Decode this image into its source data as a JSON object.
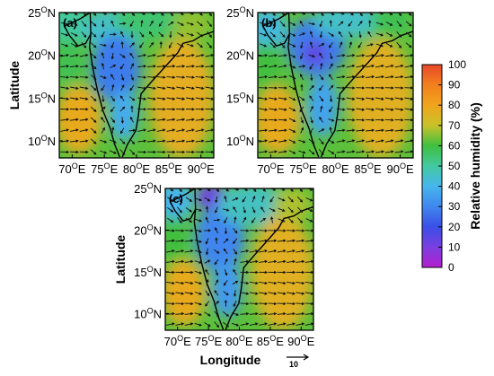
{
  "chart_data": {
    "type": "heatmap",
    "title": "",
    "variable": "Relative humidity (%)",
    "colorbar": {
      "label": "Relative humidity (%)",
      "ticks": [
        "0",
        "10",
        "20",
        "30",
        "40",
        "50",
        "60",
        "70",
        "80",
        "90",
        "100"
      ],
      "colors": [
        "#b41fd0",
        "#7a3fe0",
        "#3a4fe6",
        "#3f86ee",
        "#46b6ee",
        "#43c9a0",
        "#3fbf3f",
        "#c9c22a",
        "#f0a41c",
        "#f2801e",
        "#e8482a"
      ]
    },
    "x_ticks": [
      "70",
      "75",
      "80",
      "85",
      "90"
    ],
    "x_tick_suffix": "E",
    "y_ticks": [
      "10",
      "15",
      "20",
      "25"
    ],
    "y_tick_suffix": "N",
    "degree_symbol": "O",
    "xlim": [
      68,
      92
    ],
    "ylim": [
      8,
      25
    ],
    "xlabel": "Longitude",
    "ylabel": "Latitude",
    "wind_reference": {
      "value": "10"
    },
    "panels": [
      {
        "label": "(a)",
        "show_xlabel": false,
        "show_ylabel": true,
        "rh_field": [
          {
            "lon": 69.5,
            "lat": 23.5,
            "rx": 3.0,
            "ry": 2.4,
            "rh": 50
          },
          {
            "lon": 69.5,
            "lat": 19.0,
            "rx": 2.0,
            "ry": 3.0,
            "rh": 58
          },
          {
            "lon": 71.0,
            "lat": 12.5,
            "rx": 3.5,
            "ry": 4.0,
            "rh": 78
          },
          {
            "lon": 76.5,
            "lat": 23.0,
            "rx": 5.0,
            "ry": 2.5,
            "rh": 45
          },
          {
            "lon": 76.8,
            "lat": 18.5,
            "rx": 3.8,
            "ry": 4.0,
            "rh": 28
          },
          {
            "lon": 78.0,
            "lat": 13.0,
            "rx": 2.2,
            "ry": 3.0,
            "rh": 38
          },
          {
            "lon": 82.0,
            "lat": 24.0,
            "rx": 5.5,
            "ry": 2.0,
            "rh": 55
          },
          {
            "lon": 87.0,
            "lat": 15.0,
            "rx": 5.0,
            "ry": 7.0,
            "rh": 77
          },
          {
            "lon": 88.5,
            "lat": 23.5,
            "rx": 3.0,
            "ry": 2.0,
            "rh": 66
          }
        ]
      },
      {
        "label": "(b)",
        "show_xlabel": false,
        "show_ylabel": false,
        "rh_field": [
          {
            "lon": 69.5,
            "lat": 23.0,
            "rx": 3.0,
            "ry": 2.6,
            "rh": 42
          },
          {
            "lon": 69.5,
            "lat": 18.5,
            "rx": 2.0,
            "ry": 3.0,
            "rh": 60
          },
          {
            "lon": 71.0,
            "lat": 12.5,
            "rx": 3.5,
            "ry": 4.0,
            "rh": 78
          },
          {
            "lon": 77.0,
            "lat": 21.0,
            "rx": 4.5,
            "ry": 3.5,
            "rh": 28
          },
          {
            "lon": 76.8,
            "lat": 20.2,
            "rx": 1.8,
            "ry": 1.4,
            "rh": 14
          },
          {
            "lon": 78.0,
            "lat": 14.0,
            "rx": 2.4,
            "ry": 3.5,
            "rh": 36
          },
          {
            "lon": 82.0,
            "lat": 24.0,
            "rx": 5.5,
            "ry": 2.0,
            "rh": 45
          },
          {
            "lon": 87.0,
            "lat": 15.0,
            "rx": 5.0,
            "ry": 7.0,
            "rh": 76
          },
          {
            "lon": 88.5,
            "lat": 24.0,
            "rx": 3.0,
            "ry": 1.8,
            "rh": 58
          }
        ]
      },
      {
        "label": "(c)",
        "show_xlabel": true,
        "show_ylabel": true,
        "rh_field": [
          {
            "lon": 69.5,
            "lat": 23.5,
            "rx": 3.0,
            "ry": 2.4,
            "rh": 40
          },
          {
            "lon": 69.5,
            "lat": 18.5,
            "rx": 2.0,
            "ry": 3.0,
            "rh": 60
          },
          {
            "lon": 71.0,
            "lat": 12.5,
            "rx": 3.5,
            "ry": 4.0,
            "rh": 78
          },
          {
            "lon": 75.5,
            "lat": 24.0,
            "rx": 2.5,
            "ry": 1.6,
            "rh": 12
          },
          {
            "lon": 76.8,
            "lat": 19.0,
            "rx": 4.0,
            "ry": 4.0,
            "rh": 30
          },
          {
            "lon": 78.0,
            "lat": 13.0,
            "rx": 2.4,
            "ry": 3.5,
            "rh": 34
          },
          {
            "lon": 82.0,
            "lat": 23.0,
            "rx": 5.5,
            "ry": 2.5,
            "rh": 46
          },
          {
            "lon": 87.0,
            "lat": 15.0,
            "rx": 5.0,
            "ry": 7.0,
            "rh": 76
          },
          {
            "lon": 88.5,
            "lat": 23.0,
            "rx": 3.0,
            "ry": 2.0,
            "rh": 68
          }
        ]
      }
    ]
  }
}
